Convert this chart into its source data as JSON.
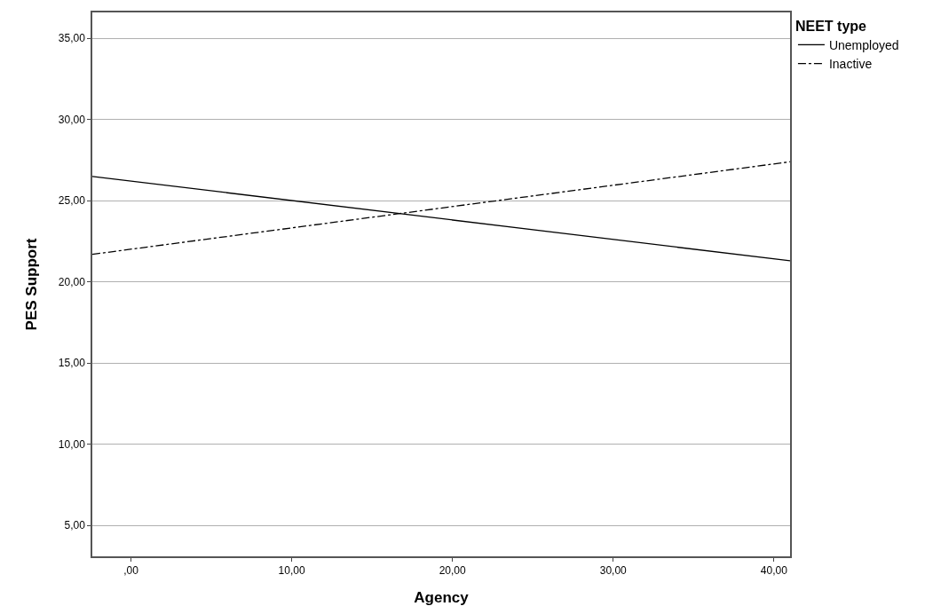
{
  "chart_data": {
    "type": "line",
    "xlabel": "Agency",
    "ylabel": "PES Support",
    "legend_title": "NEET type",
    "x": [
      -2.4,
      41.0
    ],
    "series": [
      {
        "name": "Unemployed",
        "color": "#000000",
        "values": [
          26.5,
          21.3
        ],
        "line_style": "solid"
      },
      {
        "name": "Inactive",
        "color": "#000000",
        "values": [
          21.7,
          27.4
        ],
        "line_style": "dashed"
      }
    ],
    "xlim": [
      -2.4,
      41.0
    ],
    "ylim": [
      3.1,
      36.6
    ],
    "xticks": [
      {
        "value": 0,
        "label": ",00"
      },
      {
        "value": 10,
        "label": "10,00"
      },
      {
        "value": 20,
        "label": "20,00"
      },
      {
        "value": 30,
        "label": "30,00"
      },
      {
        "value": 40,
        "label": "40,00"
      }
    ],
    "yticks": [
      {
        "value": 5,
        "label": "5,00"
      },
      {
        "value": 10,
        "label": "10,00"
      },
      {
        "value": 15,
        "label": "15,00"
      },
      {
        "value": 20,
        "label": "20,00"
      },
      {
        "value": 25,
        "label": "25,00"
      },
      {
        "value": 30,
        "label": "30,00"
      },
      {
        "value": 35,
        "label": "35,00"
      }
    ],
    "grid": "y",
    "legend": "top right",
    "marker": "none"
  }
}
